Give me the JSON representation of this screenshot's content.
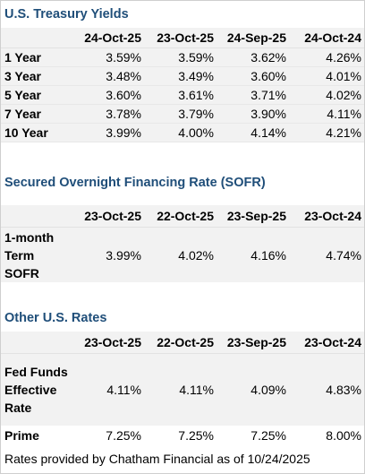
{
  "treasury": {
    "title": "U.S. Treasury Yields",
    "columns": [
      "24-Oct-25",
      "23-Oct-25",
      "24-Sep-25",
      "24-Oct-24"
    ],
    "rows": [
      {
        "label": "1 Year",
        "values": [
          "3.59%",
          "3.59%",
          "3.62%",
          "4.26%"
        ]
      },
      {
        "label": "3 Year",
        "values": [
          "3.48%",
          "3.49%",
          "3.60%",
          "4.01%"
        ]
      },
      {
        "label": "5 Year",
        "values": [
          "3.60%",
          "3.61%",
          "3.71%",
          "4.02%"
        ]
      },
      {
        "label": "7 Year",
        "values": [
          "3.78%",
          "3.79%",
          "3.90%",
          "4.11%"
        ]
      },
      {
        "label": "10 Year",
        "values": [
          "3.99%",
          "4.00%",
          "4.14%",
          "4.21%"
        ]
      }
    ]
  },
  "sofr": {
    "title": "Secured Overnight Financing Rate (SOFR)",
    "columns": [
      "23-Oct-25",
      "22-Oct-25",
      "23-Sep-25",
      "23-Oct-24"
    ],
    "rows": [
      {
        "label": "1-month Term SOFR",
        "values": [
          "3.99%",
          "4.02%",
          "4.16%",
          "4.74%"
        ]
      }
    ]
  },
  "other": {
    "title": "Other U.S. Rates",
    "columns": [
      "23-Oct-25",
      "22-Oct-25",
      "23-Sep-25",
      "23-Oct-24"
    ],
    "rows": [
      {
        "label": "Fed Funds Effective Rate",
        "values": [
          "4.11%",
          "4.11%",
          "4.09%",
          "4.83%"
        ]
      },
      {
        "label": "Prime",
        "values": [
          "7.25%",
          "7.25%",
          "7.25%",
          "8.00%"
        ]
      }
    ]
  },
  "footnote": "Rates provided by Chatham Financial as of 10/24/2025"
}
